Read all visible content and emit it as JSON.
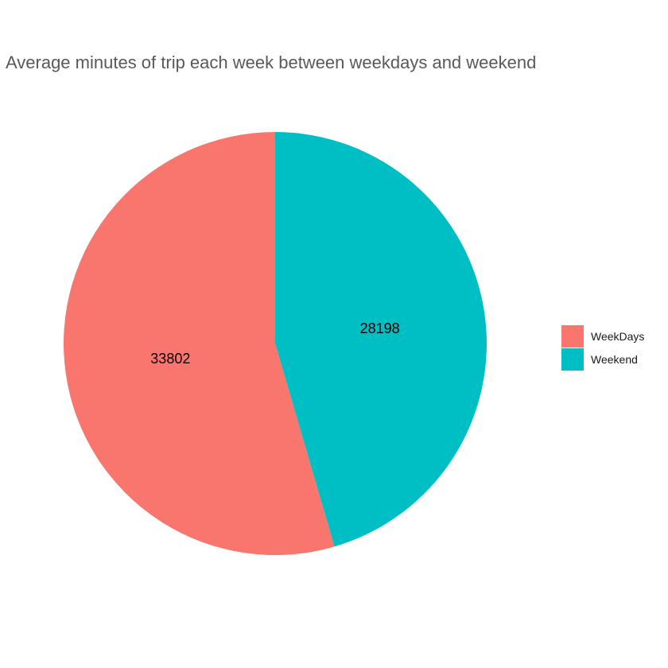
{
  "chart_data": {
    "type": "pie",
    "title": "Average minutes of trip each week between weekdays and weekend",
    "categories": [
      "WeekDays",
      "Weekend"
    ],
    "values": [
      33802,
      28198
    ],
    "colors": [
      "#F8766D",
      "#00BFC4"
    ],
    "start": "12 o'clock",
    "direction": "clockwise",
    "first_drawn": "Weekend",
    "legend_position": "right"
  }
}
